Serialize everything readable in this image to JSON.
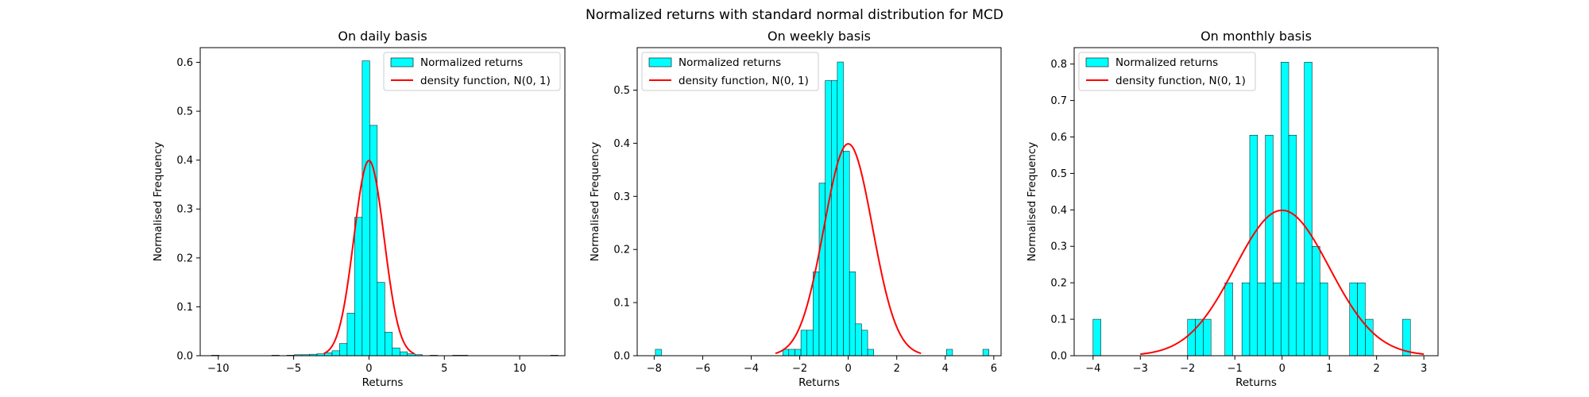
{
  "figure": {
    "suptitle": "Normalized returns with standard normal distribution for MCD",
    "bar_color": "#00ffff",
    "bar_edge_color": "#000000",
    "curve_color": "#ff0000"
  },
  "chart_data": [
    {
      "type": "bar",
      "title": "On daily basis",
      "xlabel": "Returns",
      "ylabel": "Normalised Frequency",
      "xlim": [
        -11.2,
        13.0
      ],
      "ylim": [
        0,
        0.63
      ],
      "xticks": [
        -10,
        -5,
        0,
        5,
        10
      ],
      "yticks": [
        0.0,
        0.1,
        0.2,
        0.3,
        0.4,
        0.5,
        0.6
      ],
      "ytick_labels": [
        "0.0",
        "0.1",
        "0.2",
        "0.3",
        "0.4",
        "0.5",
        "0.6"
      ],
      "legend": {
        "position": "upper right",
        "entries": [
          "Normalized returns",
          "density function, N(0, 1)"
        ]
      },
      "bin_width": 0.5,
      "bins": [
        {
          "x": -10.45,
          "y": 0.001
        },
        {
          "x": -6.45,
          "y": 0.001
        },
        {
          "x": -5.45,
          "y": 0.001
        },
        {
          "x": -4.95,
          "y": 0.002
        },
        {
          "x": -4.45,
          "y": 0.002
        },
        {
          "x": -3.95,
          "y": 0.003
        },
        {
          "x": -3.45,
          "y": 0.004
        },
        {
          "x": -2.95,
          "y": 0.006
        },
        {
          "x": -2.45,
          "y": 0.01
        },
        {
          "x": -1.95,
          "y": 0.025
        },
        {
          "x": -1.45,
          "y": 0.087
        },
        {
          "x": -0.95,
          "y": 0.283
        },
        {
          "x": -0.45,
          "y": 0.603
        },
        {
          "x": 0.05,
          "y": 0.471
        },
        {
          "x": 0.55,
          "y": 0.15
        },
        {
          "x": 1.05,
          "y": 0.048
        },
        {
          "x": 1.55,
          "y": 0.016
        },
        {
          "x": 2.05,
          "y": 0.008
        },
        {
          "x": 2.55,
          "y": 0.004
        },
        {
          "x": 3.05,
          "y": 0.002
        },
        {
          "x": 4.05,
          "y": 0.001
        },
        {
          "x": 5.55,
          "y": 0.001
        },
        {
          "x": 6.05,
          "y": 0.001
        },
        {
          "x": 12.05,
          "y": 0.001
        }
      ],
      "curve": {
        "type": "normal_pdf",
        "mu": 0,
        "sigma": 1,
        "x_range": [
          -3,
          3
        ]
      }
    },
    {
      "type": "bar",
      "title": "On weekly basis",
      "xlabel": "Returns",
      "ylabel": "Normalised Frequency",
      "xlim": [
        -8.7,
        6.3
      ],
      "ylim": [
        0,
        0.58
      ],
      "xticks": [
        -8,
        -6,
        -4,
        -2,
        0,
        2,
        4,
        6
      ],
      "yticks": [
        0.0,
        0.1,
        0.2,
        0.3,
        0.4,
        0.5
      ],
      "ytick_labels": [
        "0.0",
        "0.1",
        "0.2",
        "0.3",
        "0.4",
        "0.5"
      ],
      "legend": {
        "position": "upper left",
        "entries": [
          "Normalized returns",
          "density function, N(0, 1)"
        ]
      },
      "bin_width": 0.25,
      "bins": [
        {
          "x": -7.95,
          "y": 0.012
        },
        {
          "x": -2.7,
          "y": 0.012
        },
        {
          "x": -2.45,
          "y": 0.012
        },
        {
          "x": -2.2,
          "y": 0.012
        },
        {
          "x": -1.95,
          "y": 0.048
        },
        {
          "x": -1.7,
          "y": 0.048
        },
        {
          "x": -1.45,
          "y": 0.158
        },
        {
          "x": -1.2,
          "y": 0.325
        },
        {
          "x": -0.95,
          "y": 0.518
        },
        {
          "x": -0.7,
          "y": 0.518
        },
        {
          "x": -0.45,
          "y": 0.553
        },
        {
          "x": -0.2,
          "y": 0.385
        },
        {
          "x": 0.05,
          "y": 0.158
        },
        {
          "x": 0.3,
          "y": 0.06
        },
        {
          "x": 0.55,
          "y": 0.048
        },
        {
          "x": 0.8,
          "y": 0.012
        },
        {
          "x": 4.05,
          "y": 0.012
        },
        {
          "x": 5.55,
          "y": 0.012
        }
      ],
      "curve": {
        "type": "normal_pdf",
        "mu": 0,
        "sigma": 1,
        "x_range": [
          -3,
          3
        ]
      }
    },
    {
      "type": "bar",
      "title": "On monthly basis",
      "xlabel": "Returns",
      "ylabel": "Normalised Frequency",
      "xlim": [
        -4.4,
        3.3
      ],
      "ylim": [
        0,
        0.845
      ],
      "xticks": [
        -4,
        -3,
        -2,
        -1,
        0,
        1,
        2,
        3
      ],
      "yticks": [
        0.0,
        0.1,
        0.2,
        0.3,
        0.4,
        0.5,
        0.6,
        0.7,
        0.8
      ],
      "ytick_labels": [
        "0.0",
        "0.1",
        "0.2",
        "0.3",
        "0.4",
        "0.5",
        "0.6",
        "0.7",
        "0.8"
      ],
      "legend": {
        "position": "upper left",
        "entries": [
          "Normalized returns",
          "density function, N(0, 1)"
        ]
      },
      "bin_width": 0.165,
      "bins": [
        {
          "x": -4.0,
          "y": 0.1
        },
        {
          "x": -2.0,
          "y": 0.1
        },
        {
          "x": -1.835,
          "y": 0.1
        },
        {
          "x": -1.67,
          "y": 0.1
        },
        {
          "x": -1.21,
          "y": 0.2
        },
        {
          "x": -0.85,
          "y": 0.2
        },
        {
          "x": -0.685,
          "y": 0.605
        },
        {
          "x": -0.52,
          "y": 0.2
        },
        {
          "x": -0.355,
          "y": 0.605
        },
        {
          "x": -0.19,
          "y": 0.2
        },
        {
          "x": -0.025,
          "y": 0.805
        },
        {
          "x": 0.14,
          "y": 0.605
        },
        {
          "x": 0.305,
          "y": 0.2
        },
        {
          "x": 0.47,
          "y": 0.805
        },
        {
          "x": 0.635,
          "y": 0.3
        },
        {
          "x": 0.8,
          "y": 0.2
        },
        {
          "x": 1.43,
          "y": 0.2
        },
        {
          "x": 1.595,
          "y": 0.2
        },
        {
          "x": 1.76,
          "y": 0.1
        },
        {
          "x": 2.55,
          "y": 0.1
        }
      ],
      "curve": {
        "type": "normal_pdf",
        "mu": 0,
        "sigma": 1,
        "x_range": [
          -3,
          3
        ]
      }
    }
  ]
}
